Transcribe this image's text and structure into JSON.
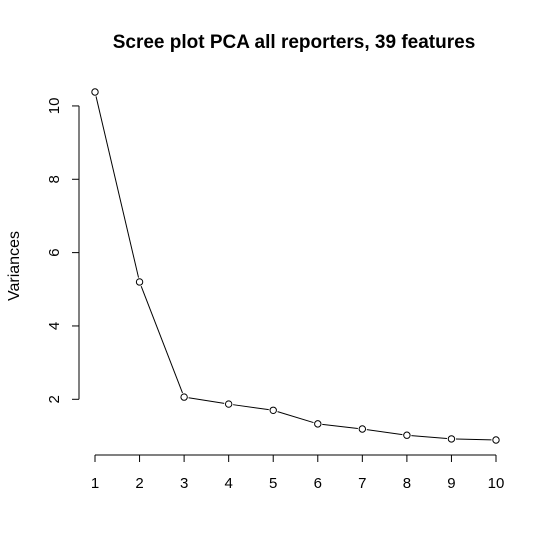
{
  "chart_data": {
    "type": "line",
    "title": "Scree plot PCA all reporters, 39 features",
    "xlabel": "",
    "ylabel": "Variances",
    "x": [
      1,
      2,
      3,
      4,
      5,
      6,
      7,
      8,
      9,
      10
    ],
    "x_tick_labels": [
      "1",
      "2",
      "3",
      "4",
      "5",
      "6",
      "7",
      "8",
      "9",
      "10"
    ],
    "values": [
      10.38,
      5.2,
      2.06,
      1.87,
      1.7,
      1.33,
      1.19,
      1.02,
      0.92,
      0.89
    ],
    "y_ticks": [
      2,
      4,
      6,
      8,
      10
    ],
    "y_tick_labels": [
      "2",
      "4",
      "6",
      "8",
      "10"
    ],
    "xlim": [
      1,
      10
    ],
    "ylim": [
      0.89,
      10.38
    ],
    "grid": false,
    "legend": "none",
    "marker": "open-circle",
    "line_color": "#000000"
  }
}
